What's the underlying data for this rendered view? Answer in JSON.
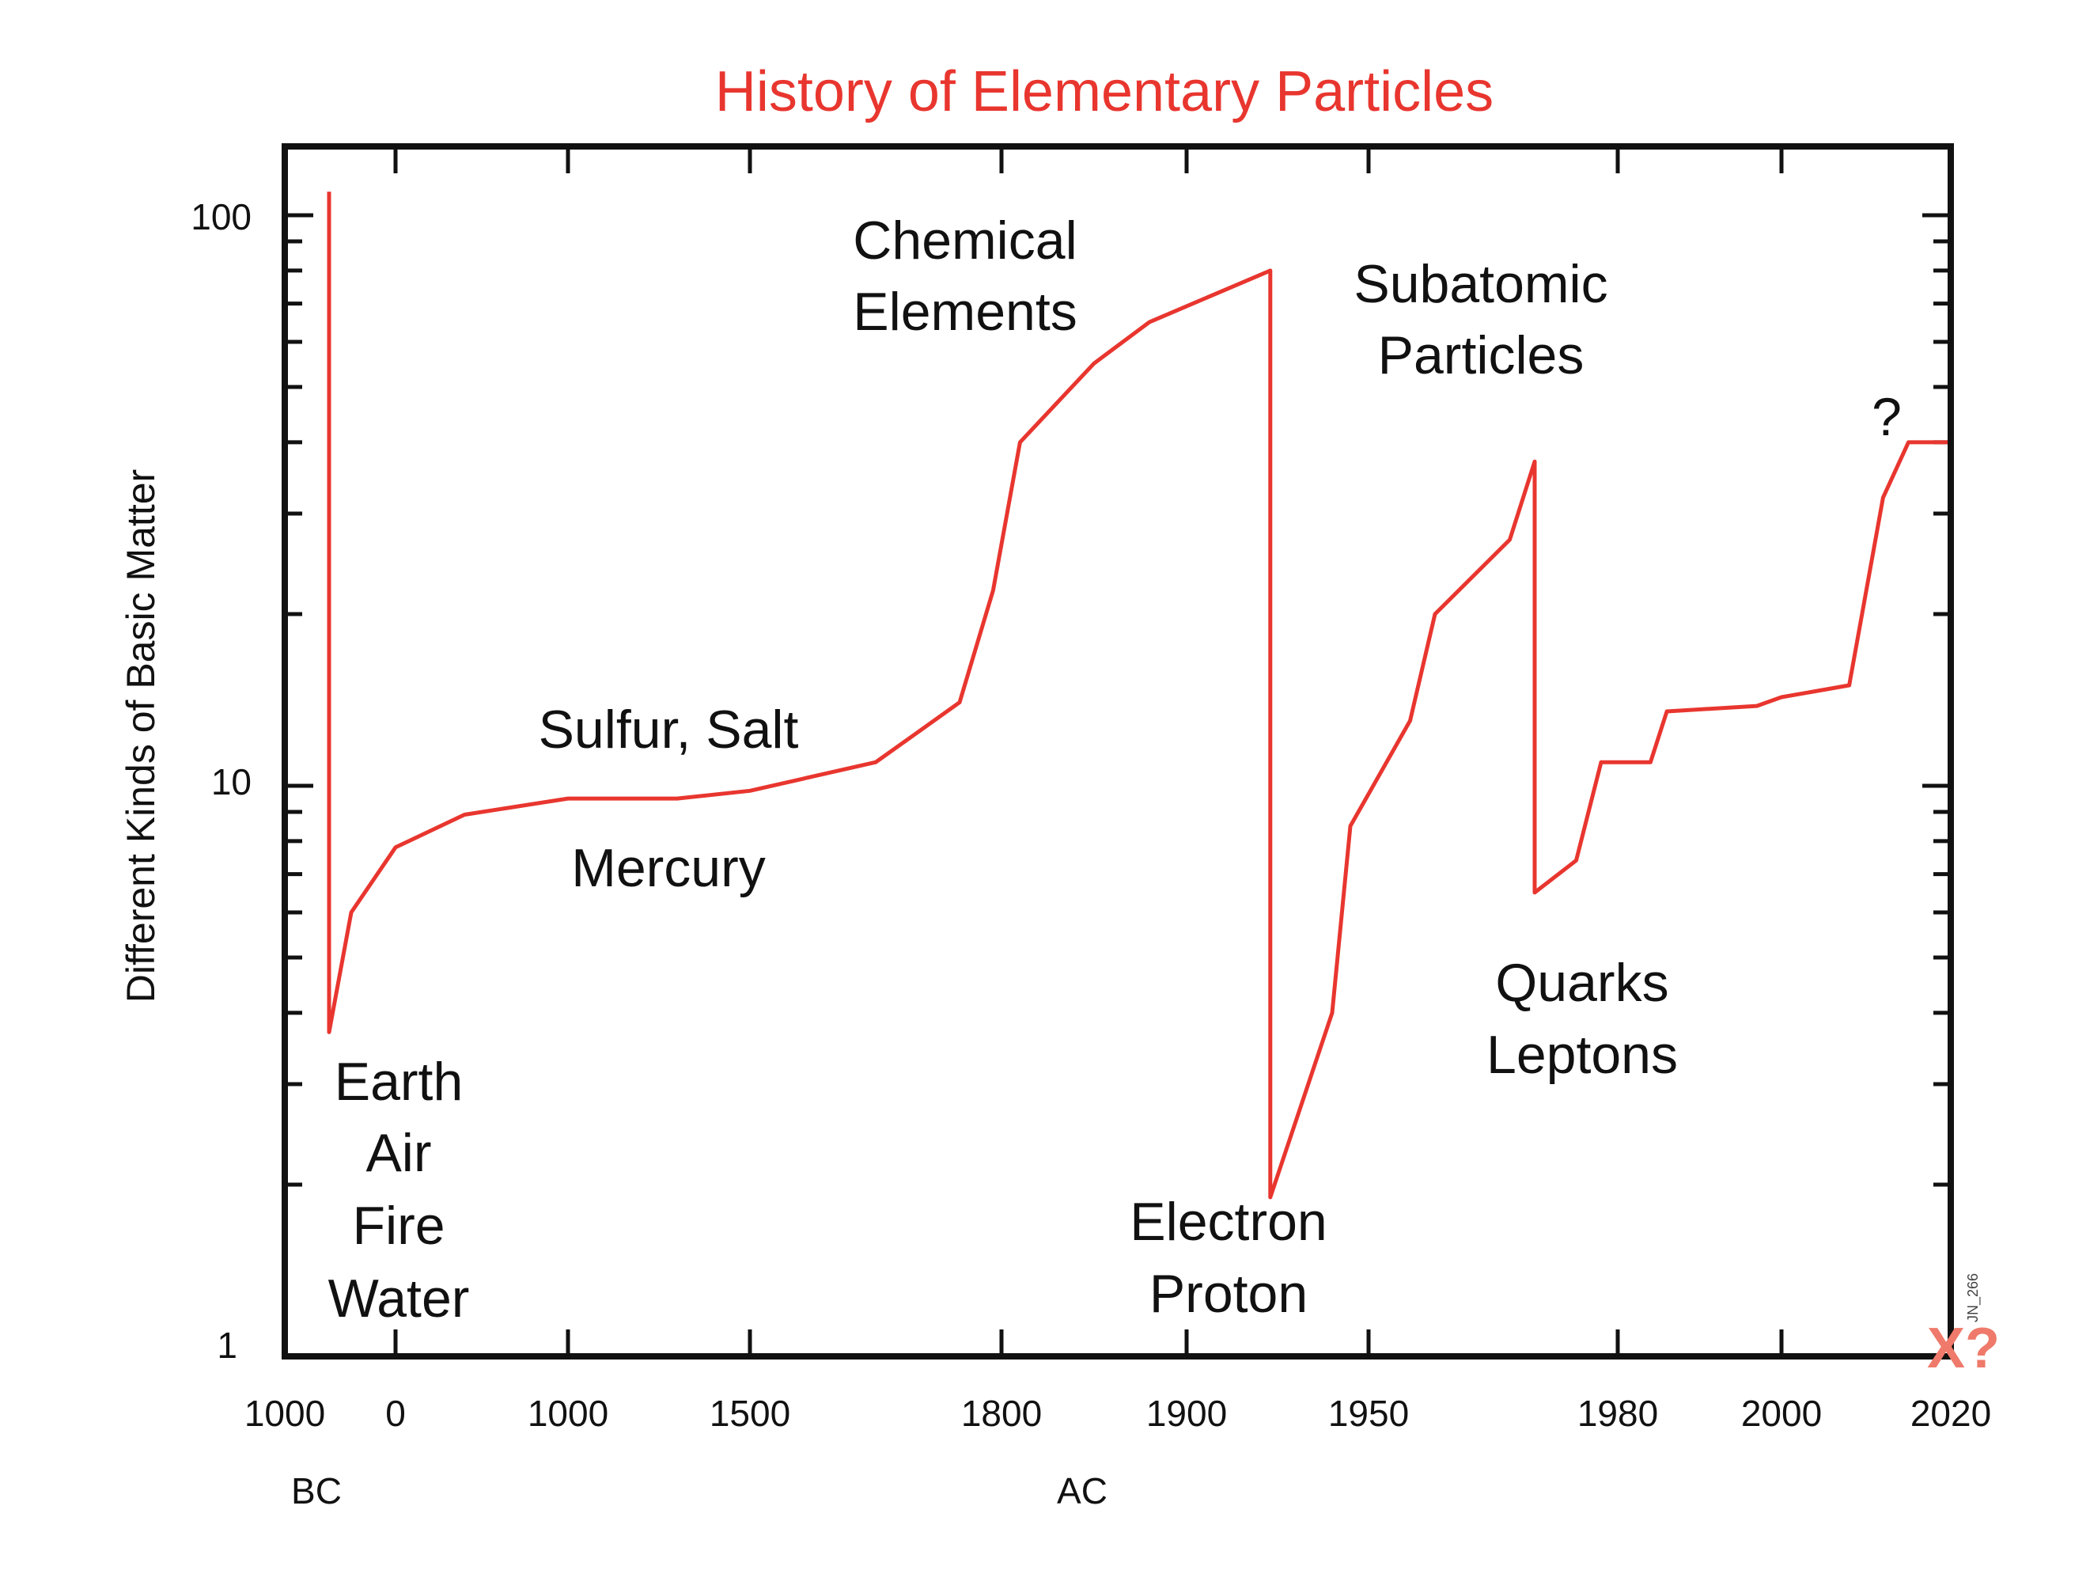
{
  "chart_data": {
    "type": "line",
    "title": "History of Elementary Particles",
    "xlabel": "",
    "ylabel": "Different Kinds of Basic Matter",
    "yscale": "log",
    "ylim": [
      1,
      100
    ],
    "y_ticks": [
      "1",
      "10",
      "100"
    ],
    "x_scale": "piecewise (segmented time axis)",
    "x_tick_labels": [
      "1000",
      "0",
      "1000",
      "1500",
      "1800",
      "1900",
      "1950",
      "1980",
      "2000",
      "2020"
    ],
    "x_era_labels": [
      "BC",
      "AC"
    ],
    "grid": false,
    "legend": "none",
    "line_color": "#e8362f",
    "title_color": "#e8362f",
    "series": [
      {
        "values": [
          {
            "x": -600,
            "y": 110
          },
          {
            "x": -600,
            "y": 3.7
          },
          {
            "x": -400,
            "y": 6.0
          },
          {
            "x": 0,
            "y": 7.8
          },
          {
            "x": 400,
            "y": 8.9
          },
          {
            "x": 1000,
            "y": 9.5
          },
          {
            "x": 1300,
            "y": 9.5
          },
          {
            "x": 1500,
            "y": 9.8
          },
          {
            "x": 1650,
            "y": 11.0
          },
          {
            "x": 1750,
            "y": 14.0
          },
          {
            "x": 1790,
            "y": 22.0
          },
          {
            "x": 1810,
            "y": 40.0
          },
          {
            "x": 1850,
            "y": 55.0
          },
          {
            "x": 1880,
            "y": 65.0
          },
          {
            "x": 1923,
            "y": 80.0
          },
          {
            "x": 1923,
            "y": 1.9
          },
          {
            "x": 1940,
            "y": 4.0
          },
          {
            "x": 1945,
            "y": 8.5
          },
          {
            "x": 1955,
            "y": 13.0
          },
          {
            "x": 1958,
            "y": 20.0
          },
          {
            "x": 1967,
            "y": 27.0
          },
          {
            "x": 1970,
            "y": 37.0
          },
          {
            "x": 1970,
            "y": 6.5
          },
          {
            "x": 1975,
            "y": 7.4
          },
          {
            "x": 1978,
            "y": 11.0
          },
          {
            "x": 1984,
            "y": 11.0
          },
          {
            "x": 1986,
            "y": 13.5
          },
          {
            "x": 1997,
            "y": 13.8
          },
          {
            "x": 2000,
            "y": 14.3
          },
          {
            "x": 2008,
            "y": 15.0
          },
          {
            "x": 2012,
            "y": 32.0
          },
          {
            "x": 2015,
            "y": 40.0
          },
          {
            "x": 2020,
            "y": 40.0
          }
        ]
      }
    ],
    "annotations": {
      "earth": [
        "Earth",
        "Air",
        "Fire",
        "Water"
      ],
      "sulfur": "Sulfur, Salt",
      "mercury": "Mercury",
      "chemical": [
        "Chemical",
        "Elements"
      ],
      "electron": [
        "Electron",
        "Proton"
      ],
      "subatomic": [
        "Subatomic",
        "Particles"
      ],
      "quarks": [
        "Quarks",
        "Leptons"
      ],
      "question": "?",
      "xq_mark": "X?",
      "stamp": "JN_266"
    }
  }
}
